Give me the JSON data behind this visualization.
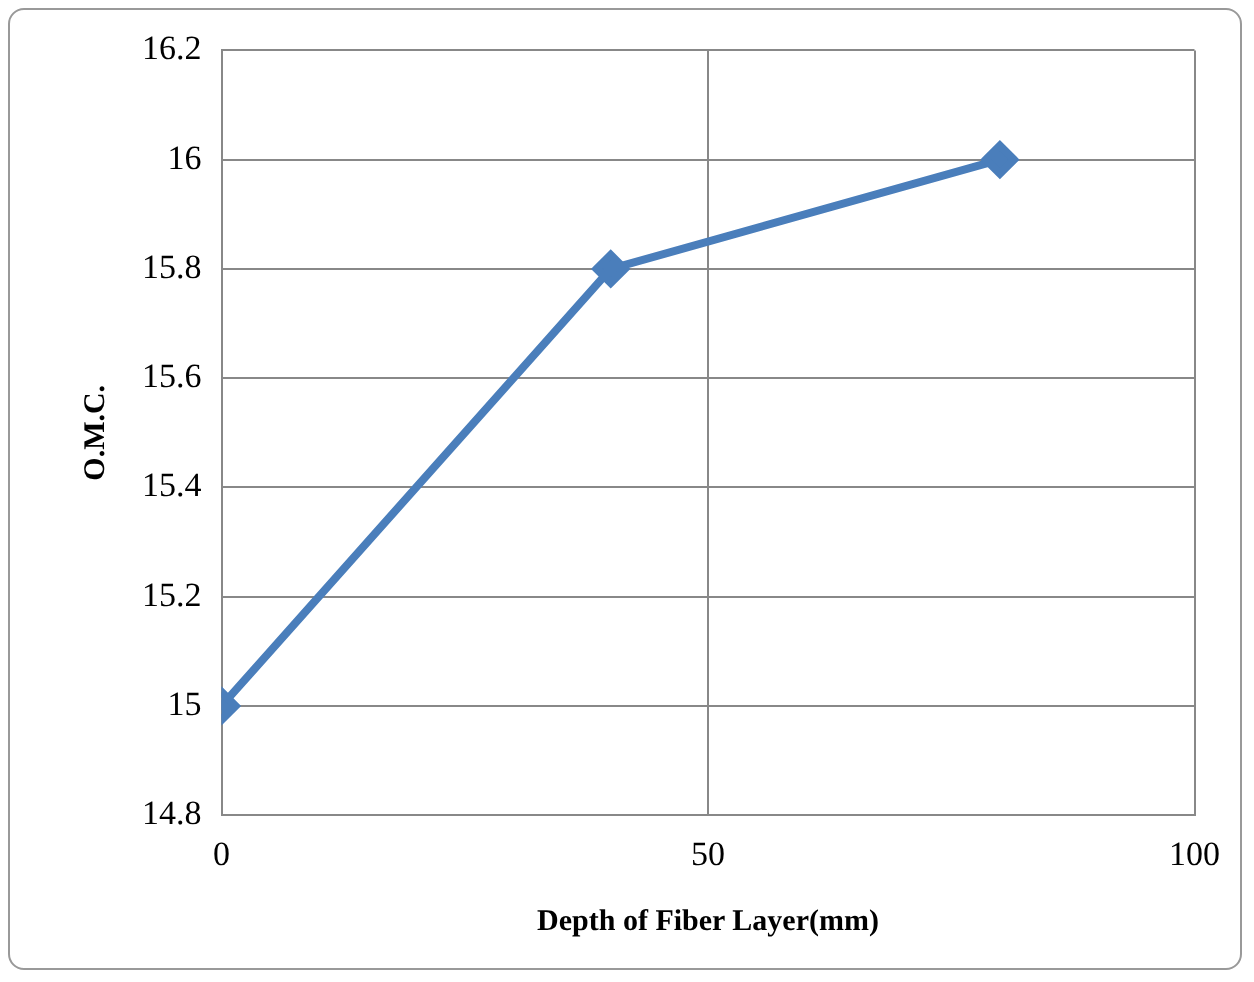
{
  "chart_data": {
    "type": "line",
    "xlabel": "Depth of Fiber Layer(mm)",
    "ylabel": "O.M.C.",
    "x": [
      0,
      40,
      80
    ],
    "series": [
      {
        "color": "#4a7ebb",
        "values": [
          15,
          15.8,
          16
        ]
      }
    ],
    "xlim": [
      0,
      100
    ],
    "xticks": [
      0,
      50,
      100
    ],
    "ylim": [
      14.8,
      16.2
    ],
    "yticks": [
      14.8,
      15,
      15.2,
      15.4,
      15.6,
      15.8,
      16,
      16.2
    ],
    "grid": true,
    "legend": false,
    "marker": "diamond",
    "line_style": "solid"
  }
}
